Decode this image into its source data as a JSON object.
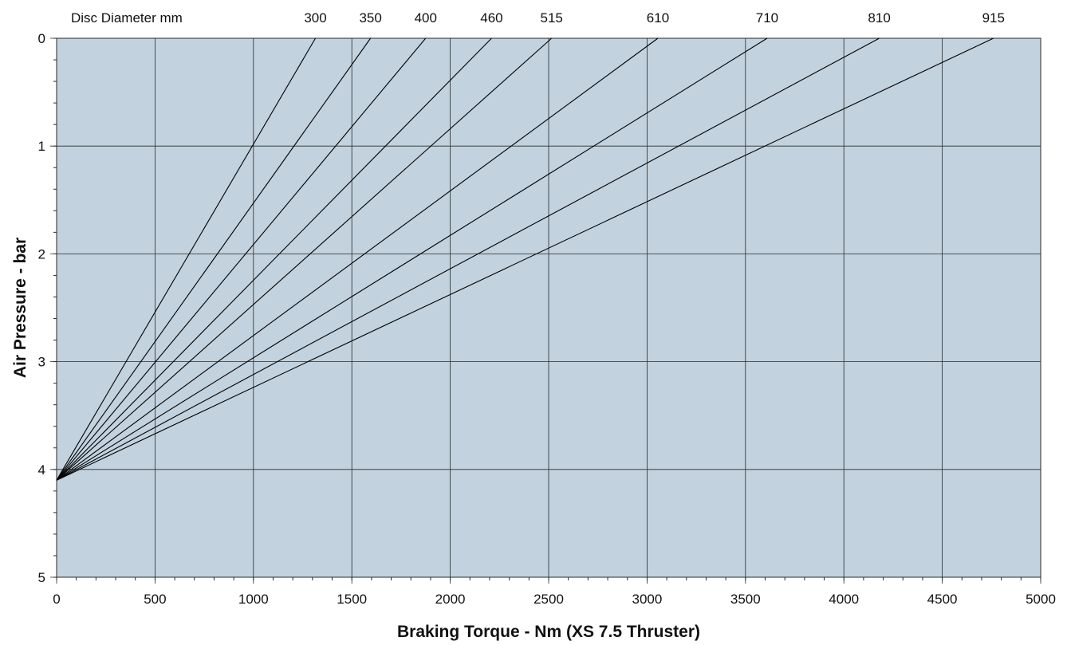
{
  "chart_data": {
    "type": "line",
    "xlabel": "Braking Torque - Nm (XS 7.5 Thruster)",
    "ylabel": "Air Pressure - bar",
    "top_label": "Disc Diameter mm",
    "xlim": [
      0,
      5000
    ],
    "ylim": [
      0,
      5
    ],
    "y_inverted": true,
    "grid": true,
    "x_major_ticks": [
      0,
      500,
      1000,
      1500,
      2000,
      2500,
      3000,
      3500,
      4000,
      4500,
      5000
    ],
    "x_tick_labels": [
      "0",
      "500",
      "1000",
      "1500",
      "2000",
      "2500",
      "3000",
      "3500",
      "4000",
      "4500",
      "5000"
    ],
    "y_major_ticks": [
      0,
      1,
      2,
      3,
      4,
      5
    ],
    "y_tick_labels": [
      "0",
      "1",
      "2",
      "3",
      "4",
      "5"
    ],
    "x_minor_step": 100,
    "y_minor_step": 0.2,
    "series": [
      {
        "name": "300",
        "x": [
          0,
          1315
        ],
        "y": [
          4.1,
          0
        ]
      },
      {
        "name": "350",
        "x": [
          0,
          1595
        ],
        "y": [
          4.1,
          0
        ]
      },
      {
        "name": "400",
        "x": [
          0,
          1875
        ],
        "y": [
          4.1,
          0
        ]
      },
      {
        "name": "460",
        "x": [
          0,
          2210
        ],
        "y": [
          4.1,
          0
        ]
      },
      {
        "name": "515",
        "x": [
          0,
          2515
        ],
        "y": [
          4.1,
          0
        ]
      },
      {
        "name": "610",
        "x": [
          0,
          3055
        ],
        "y": [
          4.1,
          0
        ]
      },
      {
        "name": "710",
        "x": [
          0,
          3610
        ],
        "y": [
          4.1,
          0
        ]
      },
      {
        "name": "810",
        "x": [
          0,
          4180
        ],
        "y": [
          4.1,
          0
        ]
      },
      {
        "name": "915",
        "x": [
          0,
          4760
        ],
        "y": [
          4.1,
          0
        ]
      }
    ],
    "colors": {
      "plot_background": "#c2d2df",
      "grid": "#2a2a2a",
      "series": "#000000"
    }
  }
}
